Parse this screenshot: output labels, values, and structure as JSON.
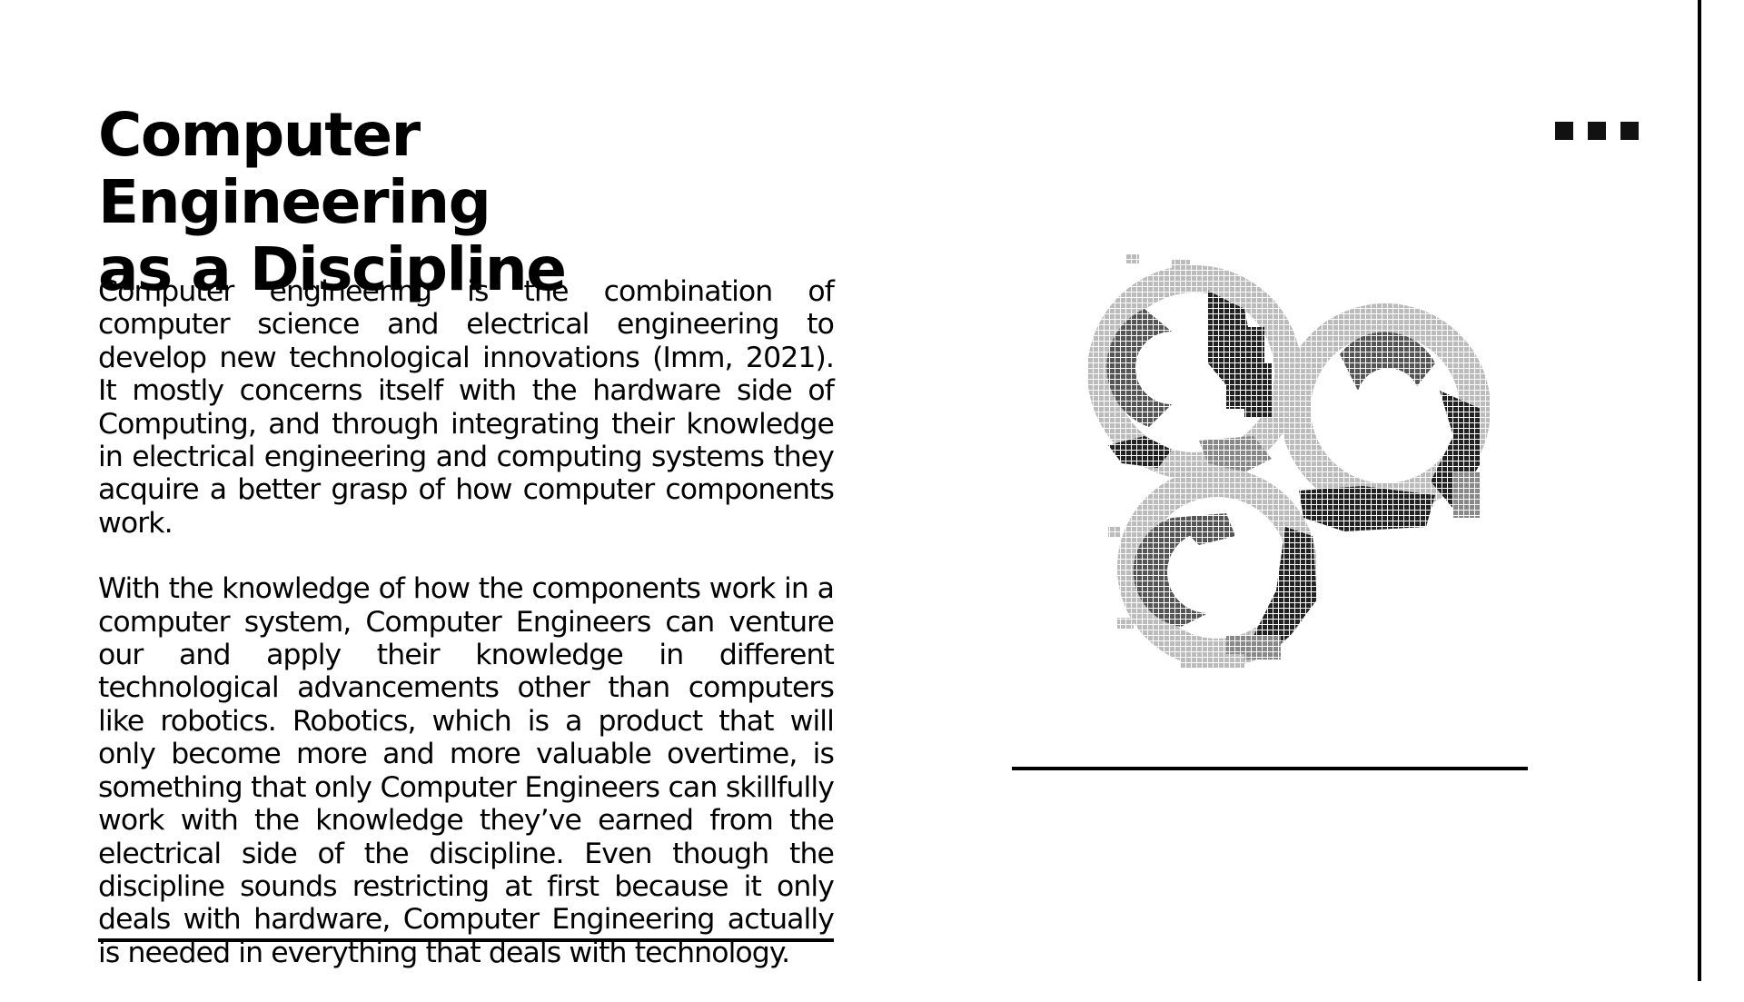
{
  "slide": {
    "title_line1": "Computer Engineering",
    "title_line2": "as a Discipline",
    "paragraphs": [
      "Computer engineering is the combination of computer science and electrical engineering to develop new technological innovations (Imm, 2021). It mostly concerns itself with the hardware side of Computing, and through integrating their knowledge in electrical engineering and computing systems they acquire a better grasp of how computer components work.",
      "With the knowledge of how the components work in a computer system, Computer Engineers can venture our and apply their knowledge in different technological advancements other than computers like robotics. Robotics, which is a product that will only become more and more valuable overtime, is something that only Computer Engineers can skillfully work with the knowledge they’ve earned from the electrical side of the discipline. Even though the discipline sounds restricting at first because it only deals with hardware, Computer Engineering actually is needed in everything that deals with technology."
    ],
    "illustration_icon": "pixelated-gears-icon",
    "decoration_icon": "three-squares-icon",
    "colors": {
      "background": "#ffffff",
      "text": "#000000",
      "accent": "#111111"
    }
  }
}
